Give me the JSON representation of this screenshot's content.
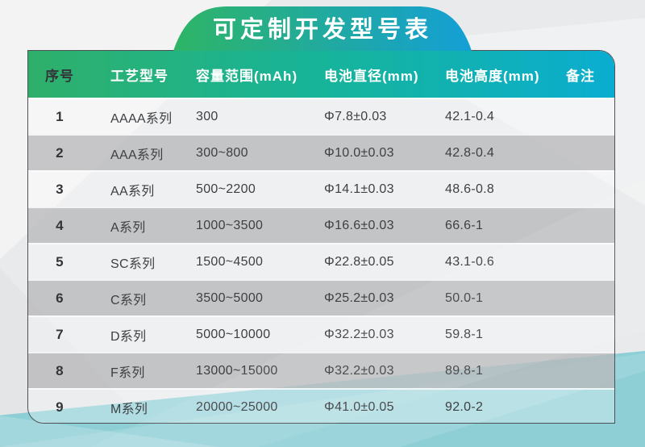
{
  "title": "可定制开发型号表",
  "table": {
    "headers": [
      "序号",
      "工艺型号",
      "容量范围(mAh)",
      "电池直径(mm)",
      "电池高度(mm)",
      "备注"
    ],
    "rows": [
      {
        "no": "1",
        "series": "AAAA系列",
        "capacity": "300",
        "diameter": "Φ7.8±0.03",
        "height": "42.1-0.4",
        "note": ""
      },
      {
        "no": "2",
        "series": "AAA系列",
        "capacity": "300~800",
        "diameter": "Φ10.0±0.03",
        "height": "42.8-0.4",
        "note": ""
      },
      {
        "no": "3",
        "series": "AA系列",
        "capacity": "500~2200",
        "diameter": "Φ14.1±0.03",
        "height": "48.6-0.8",
        "note": ""
      },
      {
        "no": "4",
        "series": "A系列",
        "capacity": "1000~3500",
        "diameter": "Φ16.6±0.03",
        "height": "66.6-1",
        "note": ""
      },
      {
        "no": "5",
        "series": "SC系列",
        "capacity": "1500~4500",
        "diameter": "Φ22.8±0.05",
        "height": "43.1-0.6",
        "note": ""
      },
      {
        "no": "6",
        "series": "C系列",
        "capacity": "3500~5000",
        "diameter": "Φ25.2±0.03",
        "height": "50.0-1",
        "note": ""
      },
      {
        "no": "7",
        "series": "D系列",
        "capacity": "5000~10000",
        "diameter": "Φ32.2±0.03",
        "height": "59.8-1",
        "note": ""
      },
      {
        "no": "8",
        "series": "F系列",
        "capacity": "13000~15000",
        "diameter": "Φ32.2±0.03",
        "height": "89.8-1",
        "note": ""
      },
      {
        "no": "9",
        "series": "M系列",
        "capacity": "20000~25000",
        "diameter": "Φ41.0±0.05",
        "height": "92.0-2",
        "note": ""
      }
    ]
  },
  "colors": {
    "gradient-green": "#2fb06a",
    "gradient-mid": "#16b49c",
    "gradient-blue": "#0aadd0",
    "banner-green": "#2eb566",
    "banner-blue": "#149fd6",
    "page-gray": "#e9eaec",
    "page-teal": "#8ecfd6",
    "border-dark": "#4f5056",
    "text-dark": "#3e3f42"
  }
}
